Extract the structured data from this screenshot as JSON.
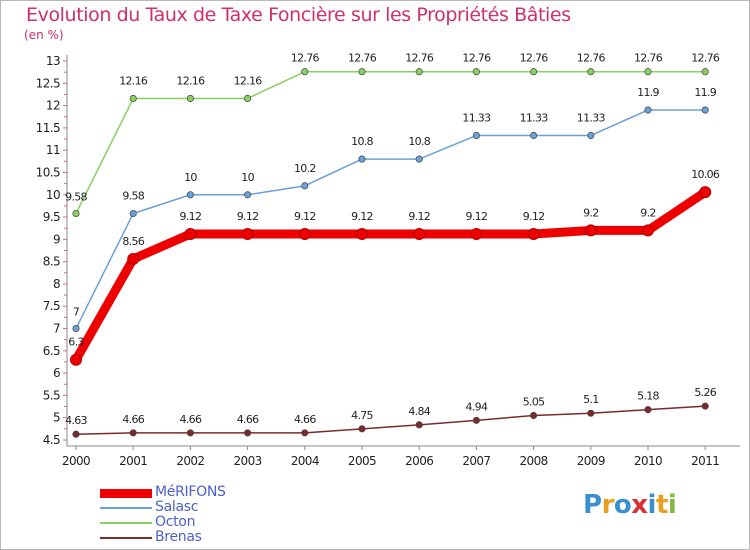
{
  "title": "Evolution du Taux de Taxe Foncière sur les Propriétés Bâties",
  "unit": "(en %)",
  "chart_data": {
    "type": "line",
    "title": "Evolution du Taux de Taxe Foncière sur les Propriétés Bâties",
    "ylabel": "(en %)",
    "xlabel": "",
    "categories": [
      "2000",
      "2001",
      "2002",
      "2003",
      "2004",
      "2005",
      "2006",
      "2007",
      "2008",
      "2009",
      "2010",
      "2011"
    ],
    "ylim": [
      4.5,
      13
    ],
    "yticks": [
      "4.5",
      "5",
      "5.5",
      "6",
      "6.5",
      "7",
      "7.5",
      "8",
      "8.5",
      "9",
      "9.5",
      "10",
      "10.5",
      "11",
      "11.5",
      "12",
      "12.5",
      "13"
    ],
    "grid": false,
    "legend_position": "bottom-left",
    "series": [
      {
        "name": "MéRIFONS",
        "color": "#ee0000",
        "values": [
          6.3,
          8.56,
          9.12,
          9.12,
          9.12,
          9.12,
          9.12,
          9.12,
          9.12,
          9.2,
          9.2,
          10.06
        ],
        "labels": [
          "6.3",
          "8.56",
          "9.12",
          "9.12",
          "9.12",
          "9.12",
          "9.12",
          "9.12",
          "9.12",
          "9.2",
          "9.2",
          "10.06"
        ]
      },
      {
        "name": "Salasc",
        "color": "#6aa0d8",
        "values": [
          7,
          9.58,
          10,
          10,
          10.2,
          10.8,
          10.8,
          11.33,
          11.33,
          11.33,
          11.9,
          11.9
        ],
        "labels": [
          "7",
          "9.58",
          "10",
          "10",
          "10.2",
          "10.8",
          "10.8",
          "11.33",
          "11.33",
          "11.33",
          "11.9",
          "11.9"
        ]
      },
      {
        "name": "Octon",
        "color": "#88d060",
        "values": [
          9.58,
          12.16,
          12.16,
          12.16,
          12.76,
          12.76,
          12.76,
          12.76,
          12.76,
          12.76,
          12.76,
          12.76
        ],
        "labels": [
          "9.58",
          "12.16",
          "12.16",
          "12.16",
          "12.76",
          "12.76",
          "12.76",
          "12.76",
          "12.76",
          "12.76",
          "12.76",
          "12.76"
        ]
      },
      {
        "name": "Brenas",
        "color": "#7a2a2a",
        "values": [
          4.63,
          4.66,
          4.66,
          4.66,
          4.66,
          4.75,
          4.84,
          4.94,
          5.05,
          5.1,
          5.18,
          5.26
        ],
        "labels": [
          "4.63",
          "4.66",
          "4.66",
          "4.66",
          "4.66",
          "4.75",
          "4.84",
          "4.94",
          "5.05",
          "5.1",
          "5.18",
          "5.26"
        ]
      }
    ]
  },
  "legend": [
    {
      "label": "MéRIFONS",
      "color": "#ee0000"
    },
    {
      "label": "Salasc",
      "color": "#6aa0d8"
    },
    {
      "label": "Octon",
      "color": "#88d060"
    },
    {
      "label": "Brenas",
      "color": "#7a2a2a"
    }
  ],
  "logo": {
    "text": "Proxiti",
    "letters": [
      {
        "ch": "P",
        "color": "#3a8fd0"
      },
      {
        "ch": "r",
        "color": "#e8a020"
      },
      {
        "ch": "o",
        "color": "#3a8fd0"
      },
      {
        "ch": "x",
        "color": "#d83030"
      },
      {
        "ch": "i",
        "color": "#3a8fd0"
      },
      {
        "ch": "t",
        "color": "#e8a020"
      },
      {
        "ch": "i",
        "color": "#80b840"
      }
    ]
  }
}
